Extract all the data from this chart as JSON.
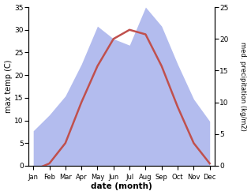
{
  "months": [
    "Jan",
    "Feb",
    "Mar",
    "Apr",
    "May",
    "Jun",
    "Jul",
    "Aug",
    "Sep",
    "Oct",
    "Nov",
    "Dec"
  ],
  "temperature": [
    -1.0,
    0.5,
    5.0,
    14.0,
    22.0,
    28.0,
    30.0,
    29.0,
    22.0,
    13.0,
    5.0,
    0.5
  ],
  "precipitation": [
    5.5,
    8.0,
    11.0,
    16.0,
    22.0,
    20.0,
    19.0,
    25.0,
    22.0,
    16.0,
    10.5,
    7.0
  ],
  "temp_color": "#c0504d",
  "precip_fill_color": "#b3bcee",
  "ylabel_left": "max temp (C)",
  "ylabel_right": "med. precipitation (kg/m2)",
  "xlabel": "date (month)",
  "ylim_left": [
    0,
    35
  ],
  "ylim_right": [
    0,
    25
  ],
  "yticks_left": [
    0,
    5,
    10,
    15,
    20,
    25,
    30,
    35
  ],
  "yticks_right": [
    0,
    5,
    10,
    15,
    20,
    25
  ],
  "bg_color": "#ffffff"
}
